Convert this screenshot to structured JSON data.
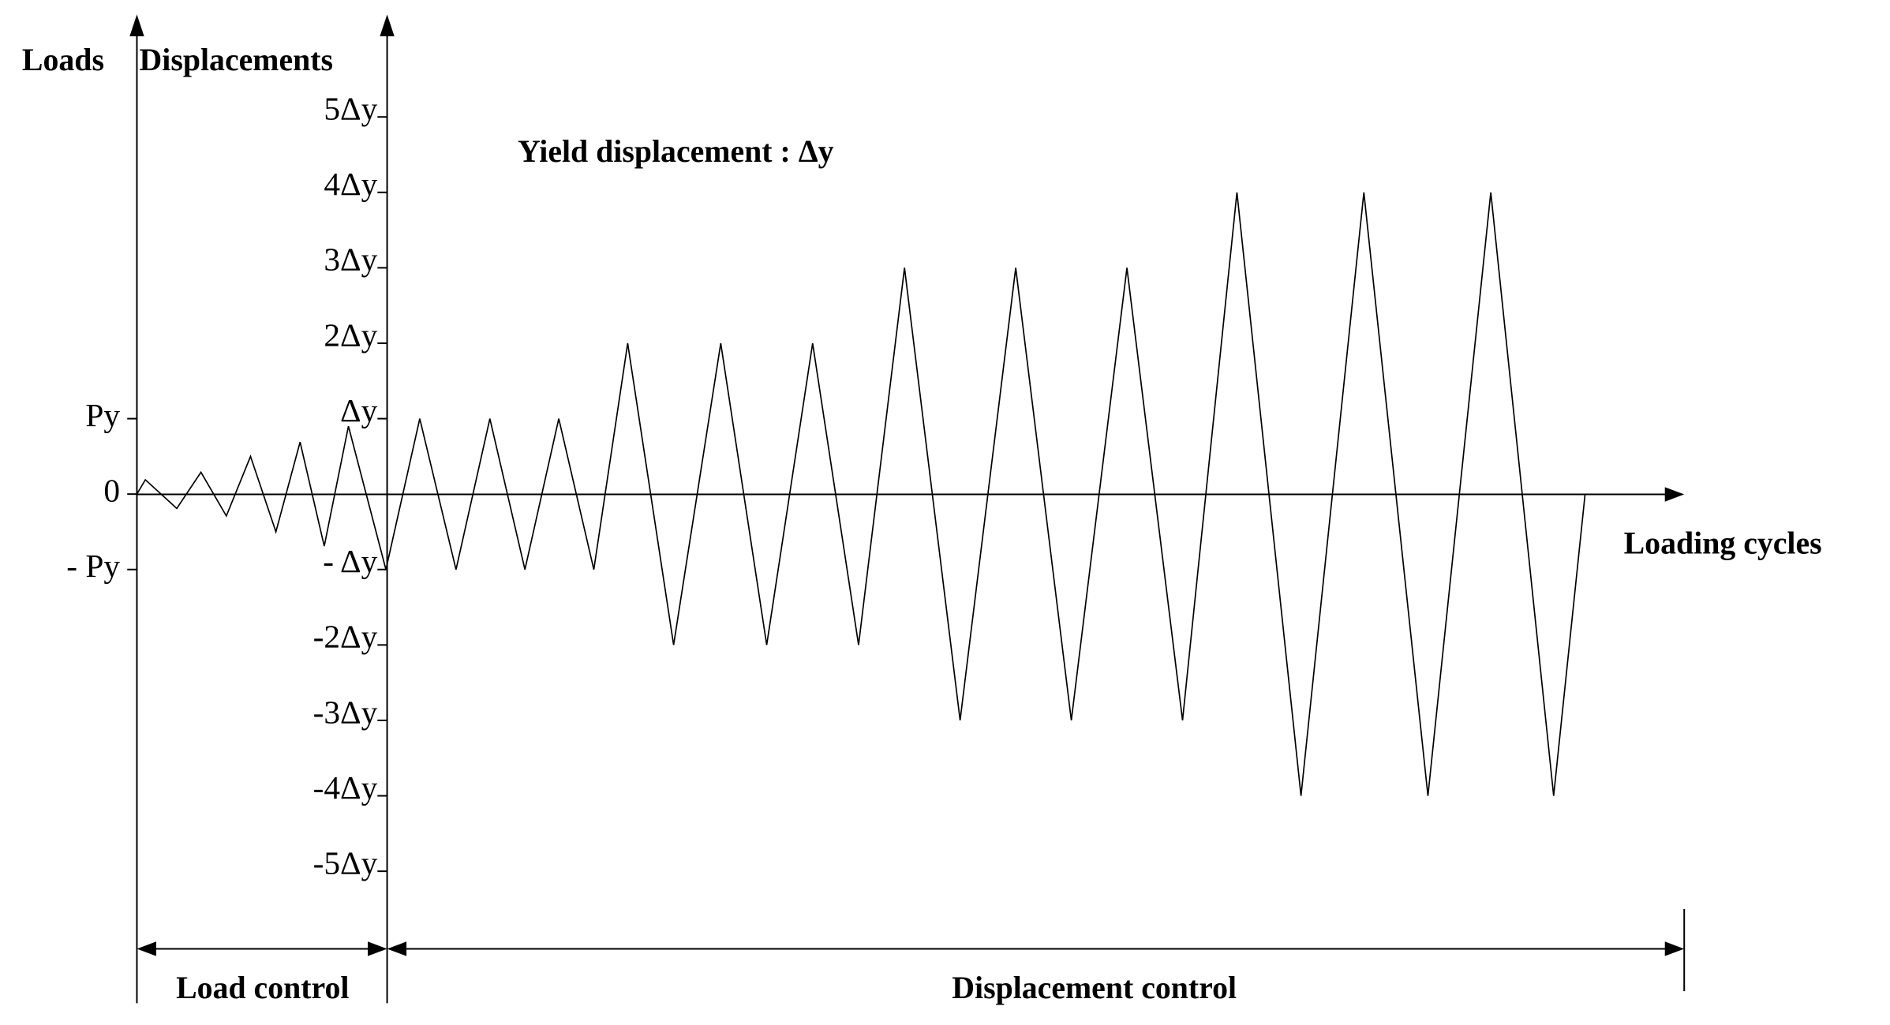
{
  "chart_data": {
    "type": "line",
    "ylabel": "Loads",
    "y2label": "Displacements",
    "xlabel": "Loading cycles",
    "annotations": [
      "Yield displacement : Δy",
      "Load control",
      "Displacement control"
    ],
    "xlim": [
      0,
      1280
    ],
    "ylim": [
      -6.75,
      6.31
    ],
    "y2lim": [
      -6.75,
      6.31
    ],
    "yticks": [
      {
        "value": 1,
        "label": "Py"
      },
      0,
      {
        "value": -1,
        "label": "- Py"
      }
    ],
    "y2ticks": [
      {
        "value": 5,
        "label": "5Δy"
      },
      {
        "value": 4,
        "label": "4Δy"
      },
      {
        "value": 3,
        "label": "3Δy"
      },
      {
        "value": 2,
        "label": "2Δy"
      },
      {
        "value": 1,
        "label": "Δy"
      },
      {
        "value": -1,
        "label": "- Δy"
      },
      {
        "value": -2,
        "label": "-2Δy"
      },
      {
        "value": -3,
        "label": "-3Δy"
      },
      {
        "value": -4,
        "label": "-4Δy"
      },
      {
        "value": -5,
        "label": "-5Δy"
      }
    ],
    "grid": false,
    "series": [
      {
        "color": "#000000",
        "x": [
          0,
          7,
          33,
          53,
          74,
          94,
          115,
          135,
          155,
          175,
          206,
          234,
          264,
          292,
          321,
          349,
          378,
          406,
          444,
          483,
          521,
          559,
          597,
          635,
          681,
          727,
          773,
          819,
          865,
          910,
          963,
          1015,
          1068,
          1120,
          1172,
          1198
        ],
        "values": [
          0,
          0.19,
          -0.19,
          0.29,
          -0.29,
          0.5,
          -0.5,
          0.69,
          -0.69,
          0.9,
          -1,
          1,
          -1,
          1,
          -1,
          1,
          -1,
          2,
          -2,
          2,
          -2,
          2,
          -2,
          3,
          -3,
          3,
          -3,
          3,
          -3,
          4,
          -4,
          4,
          -4,
          4,
          -4,
          0
        ]
      }
    ]
  }
}
